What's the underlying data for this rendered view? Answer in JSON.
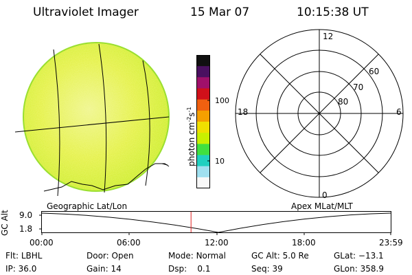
{
  "header": {
    "instrument": "Ultraviolet Imager",
    "date": "15 Mar 07",
    "time": "10:15:38 UT"
  },
  "colorbar": {
    "label_main": "photon cm",
    "label_exp1": "-2",
    "label_mid": "s",
    "label_exp2": "-1",
    "tick_high": "100",
    "tick_low": "10",
    "scale": "log",
    "colors": [
      "#101010",
      "#4a1060",
      "#a0106a",
      "#d0101a",
      "#f06010",
      "#f5a000",
      "#f0e000",
      "#c8f000",
      "#40e040",
      "#20d0c0",
      "#a0e0f0",
      "#f8f8f8"
    ]
  },
  "polar_plot": {
    "mlt_labels": {
      "top": "12",
      "left": "18",
      "right": "6",
      "bottom": "0"
    },
    "lat_labels": [
      "60",
      "70",
      "80"
    ]
  },
  "panel_labels": {
    "left": "Geographic Lat/Lon",
    "right": "Apex MLat/MLT"
  },
  "altitude_plot": {
    "axis_title": "GC Alt",
    "y_ticks": [
      "9.0",
      "1.8"
    ],
    "x_ticks": [
      "00:00",
      "06:00",
      "12:00",
      "18:00",
      "23:59"
    ],
    "current_time_marker_hour": 10.26
  },
  "status": {
    "flt_label": "Flt:",
    "flt_value": "LBHL",
    "door_label": "Door:",
    "door_value": "Open",
    "mode_label": "Mode:",
    "mode_value": "Normal",
    "gcalt_label": "GC Alt:",
    "gcalt_value": "5.0 Re",
    "glat_label": "GLat:",
    "glat_value": "−13.1",
    "ip_label": "IP:",
    "ip_value": "36.0",
    "gain_label": "Gain:",
    "gain_value": "14",
    "dsp_label": "Dsp:",
    "dsp_value": "0.1",
    "seq_label": "Seq:",
    "seq_value": "39",
    "glon_label": "GLon:",
    "glon_value": "358.9"
  },
  "colors": {
    "earth_disk": "#dff028",
    "marker": "#e02020",
    "line": "#000000"
  }
}
